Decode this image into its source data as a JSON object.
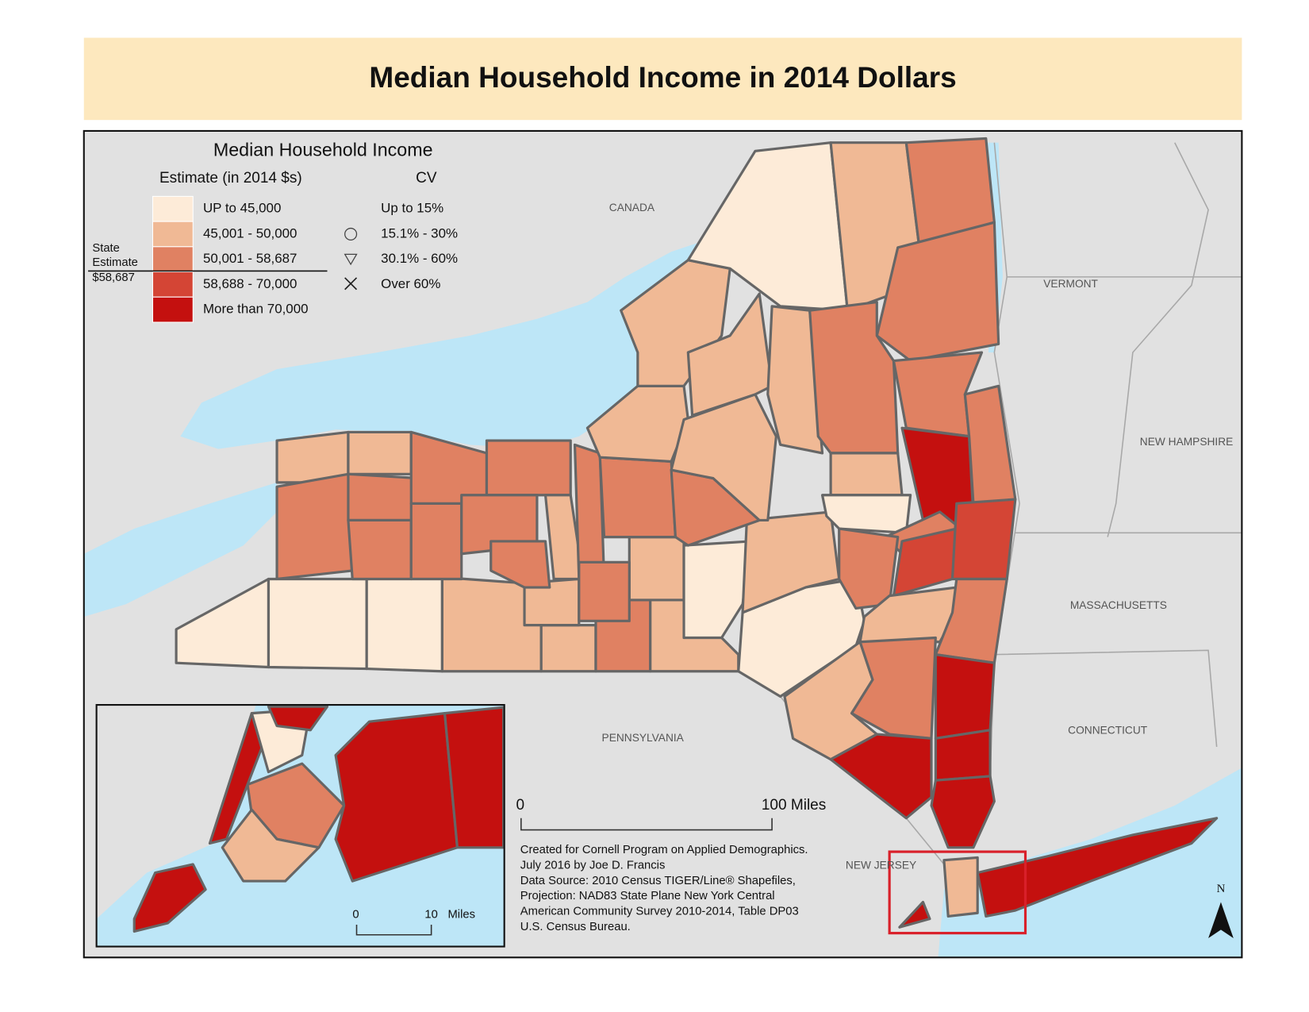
{
  "title": "Median Household Income in 2014 Dollars",
  "legend": {
    "title": "Median Household Income",
    "estimate_heading": "Estimate (in 2014 $s)",
    "cv_heading": "CV",
    "classes": [
      {
        "label": "UP to 45,000",
        "color": "#fdebd8"
      },
      {
        "label": "45,001 - 50,000",
        "color": "#f0b995"
      },
      {
        "label": "50,001 - 58,687",
        "color": "#e08162"
      },
      {
        "label": "58,688 - 70,000",
        "color": "#d44535"
      },
      {
        "label": "More than 70,000",
        "color": "#c4100f"
      }
    ],
    "cv_classes": [
      "Up to 15%",
      "15.1% - 30%",
      "30.1% - 60%",
      "Over 60%"
    ],
    "state_estimate": [
      "State",
      "Estimate",
      "$58,687"
    ]
  },
  "place_labels": [
    "CANADA",
    "VERMONT",
    "NEW HAMPSHIRE",
    "MASSACHUSETTS",
    "CONNECTICUT",
    "PENNSYLVANIA",
    "NEW JERSEY"
  ],
  "scale_bar": {
    "start": "0",
    "end": "100 Miles"
  },
  "inset_scale": {
    "start": "0",
    "end": "10",
    "unit": "Miles"
  },
  "credits": [
    "Created for Cornell Program on Applied Demographics.",
    "July 2016 by Joe D. Francis",
    "Data Source: 2010 Census TIGER/Line® Shapefiles,",
    "Projection: NAD83 State Plane New York Central",
    "American Community Survey 2010-2014, Table DP03",
    "U.S. Census Bureau."
  ],
  "north": "N"
}
